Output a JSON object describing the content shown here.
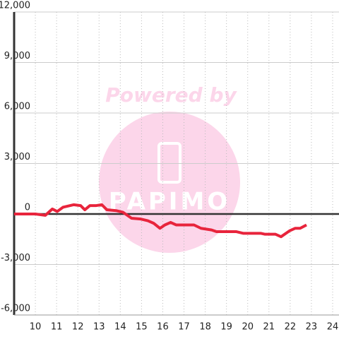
{
  "chart_data": {
    "type": "line",
    "watermark": {
      "line1": "Powered by",
      "line2": "PAPIMO"
    },
    "x": [
      9,
      10,
      10.47,
      10.8,
      11.03,
      11.3,
      11.8,
      12.13,
      12.33,
      12.57,
      12.87,
      13.13,
      13.37,
      13.8,
      14.13,
      14.53,
      14.97,
      15.3,
      15.57,
      15.87,
      16.1,
      16.37,
      16.63,
      17.47,
      17.8,
      18.3,
      18.53,
      19.47,
      19.8,
      20.63,
      20.8,
      21.3,
      21.57,
      21.97,
      22.23,
      22.47,
      22.77
    ],
    "series": [
      {
        "color": "#e8243c",
        "values": [
          0,
          0,
          -80,
          300,
          150,
          400,
          550,
          500,
          250,
          500,
          500,
          550,
          250,
          200,
          100,
          -250,
          -300,
          -400,
          -550,
          -850,
          -650,
          -500,
          -650,
          -650,
          -850,
          -950,
          -1050,
          -1050,
          -1150,
          -1150,
          -1200,
          -1200,
          -1350,
          -1000,
          -850,
          -850,
          -650
        ]
      }
    ],
    "xlim": [
      9,
      24.3
    ],
    "ylim": [
      -6000,
      12000
    ],
    "xticks": [
      10,
      11,
      12,
      13,
      14,
      15,
      16,
      17,
      18,
      19,
      20,
      21,
      22,
      23,
      24
    ],
    "yticks": [
      {
        "value": -6000,
        "label": "-6,000"
      },
      {
        "value": -3000,
        "label": "-3,000"
      },
      0,
      {
        "value": 3000,
        "label": "3,000"
      },
      {
        "value": 6000,
        "label": "6,000"
      },
      {
        "value": 9000,
        "label": "9,000"
      },
      {
        "value": 12000,
        "label": "12,000"
      }
    ],
    "grid": true
  }
}
